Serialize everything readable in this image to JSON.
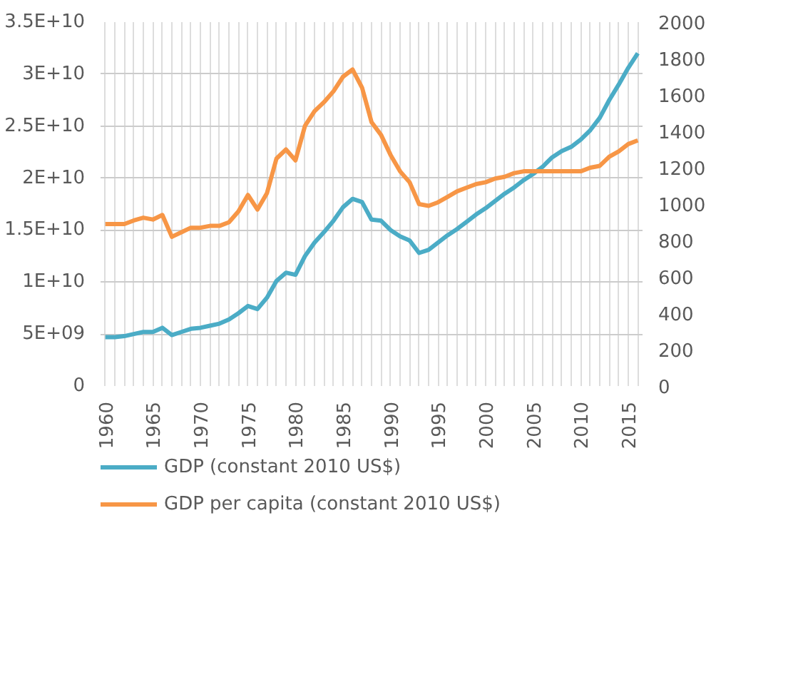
{
  "chart_data": {
    "type": "line",
    "x": [
      1960,
      1961,
      1962,
      1963,
      1964,
      1965,
      1966,
      1967,
      1968,
      1969,
      1970,
      1971,
      1972,
      1973,
      1974,
      1975,
      1976,
      1977,
      1978,
      1979,
      1980,
      1981,
      1982,
      1983,
      1984,
      1985,
      1986,
      1987,
      1988,
      1989,
      1990,
      1991,
      1992,
      1993,
      1994,
      1995,
      1996,
      1997,
      1998,
      1999,
      2000,
      2001,
      2002,
      2003,
      2004,
      2005,
      2006,
      2007,
      2008,
      2009,
      2010,
      2011,
      2012,
      2013,
      2014,
      2015,
      2016
    ],
    "series": [
      {
        "name": "GDP (constant 2010 US$)",
        "color": "#4bacc6",
        "values": [
          4700000000.0,
          4700000000.0,
          4800000000.0,
          5000000000.0,
          5200000000.0,
          5200000000.0,
          5600000000.0,
          4900000000.0,
          5200000000.0,
          5500000000.0,
          5600000000.0,
          5800000000.0,
          6000000000.0,
          6400000000.0,
          7000000000.0,
          7700000000.0,
          7400000000.0,
          8500000000.0,
          10100000000.0,
          10900000000.0,
          10700000000.0,
          12500000000.0,
          13800000000.0,
          14800000000.0,
          15900000000.0,
          17200000000.0,
          18000000000.0,
          17700000000.0,
          16000000000.0,
          15900000000.0,
          15000000000.0,
          14400000000.0,
          14000000000.0,
          12800000000.0,
          13100000000.0,
          13800000000.0,
          14500000000.0,
          15100000000.0,
          15800000000.0,
          16500000000.0,
          17100000000.0,
          17800000000.0,
          18500000000.0,
          19100000000.0,
          19800000000.0,
          20400000000.0,
          21100000000.0,
          22000000000.0,
          22600000000.0,
          23000000000.0,
          23700000000.0,
          24600000000.0,
          25800000000.0,
          27500000000.0,
          29000000000.0,
          30600000000.0,
          32000000000.0
        ]
      },
      {
        "name": "GDP per capita (constant 2010 US$)",
        "color": "#f79646",
        "axis": "y2",
        "values": [
          890,
          890,
          890,
          910,
          925,
          915,
          940,
          820,
          845,
          870,
          870,
          880,
          880,
          900,
          960,
          1050,
          970,
          1060,
          1250,
          1300,
          1240,
          1430,
          1510,
          1560,
          1620,
          1700,
          1740,
          1640,
          1450,
          1380,
          1270,
          1180,
          1120,
          1000,
          990,
          1010,
          1040,
          1070,
          1090,
          1110,
          1120,
          1140,
          1150,
          1170,
          1180,
          1180,
          1180,
          1180,
          1180,
          1180,
          1180,
          1200,
          1210,
          1260,
          1290,
          1330,
          1350
        ]
      }
    ],
    "xlim": [
      1959.5,
      2016.5
    ],
    "xticks": [
      1960,
      {
        "value": 1961,
        "label": null
      },
      {
        "value": 1962,
        "label": null
      },
      {
        "value": 1963,
        "label": null
      },
      {
        "value": 1964,
        "label": null
      },
      1965,
      {
        "value": 1966,
        "label": null
      },
      {
        "value": 1967,
        "label": null
      },
      {
        "value": 1968,
        "label": null
      },
      {
        "value": 1969,
        "label": null
      },
      1970,
      {
        "value": 1971,
        "label": null
      },
      {
        "value": 1972,
        "label": null
      },
      {
        "value": 1973,
        "label": null
      },
      {
        "value": 1974,
        "label": null
      },
      1975,
      {
        "value": 1976,
        "label": null
      },
      {
        "value": 1977,
        "label": null
      },
      {
        "value": 1978,
        "label": null
      },
      {
        "value": 1979,
        "label": null
      },
      1980,
      {
        "value": 1981,
        "label": null
      },
      {
        "value": 1982,
        "label": null
      },
      {
        "value": 1983,
        "label": null
      },
      {
        "value": 1984,
        "label": null
      },
      1985,
      {
        "value": 1986,
        "label": null
      },
      {
        "value": 1987,
        "label": null
      },
      {
        "value": 1988,
        "label": null
      },
      {
        "value": 1989,
        "label": null
      },
      1990,
      {
        "value": 1991,
        "label": null
      },
      {
        "value": 1992,
        "label": null
      },
      {
        "value": 1993,
        "label": null
      },
      {
        "value": 1994,
        "label": null
      },
      1995,
      {
        "value": 1996,
        "label": null
      },
      {
        "value": 1997,
        "label": null
      },
      {
        "value": 1998,
        "label": null
      },
      {
        "value": 1999,
        "label": null
      },
      2000,
      {
        "value": 2001,
        "label": null
      },
      {
        "value": 2002,
        "label": null
      },
      {
        "value": 2003,
        "label": null
      },
      {
        "value": 2004,
        "label": null
      },
      2005,
      {
        "value": 2006,
        "label": null
      },
      {
        "value": 2007,
        "label": null
      },
      {
        "value": 2008,
        "label": null
      },
      {
        "value": 2009,
        "label": null
      },
      2010,
      {
        "value": 2011,
        "label": null
      },
      {
        "value": 2012,
        "label": null
      },
      {
        "value": 2013,
        "label": null
      },
      {
        "value": 2014,
        "label": null
      },
      2015,
      {
        "value": 2016,
        "label": null
      }
    ],
    "ylim": [
      0,
      35000000000.0
    ],
    "yticks": [
      0,
      {
        "value": 5000000000.0,
        "label": "5E+09"
      },
      {
        "value": 10000000000.0,
        "label": "1E+10"
      },
      {
        "value": 15000000000.0,
        "label": "1.5E+10"
      },
      {
        "value": 20000000000.0,
        "label": "2E+10"
      },
      {
        "value": 25000000000.0,
        "label": "2.5E+10"
      },
      {
        "value": 30000000000.0,
        "label": "3E+10"
      },
      {
        "value": 35000000000.0,
        "label": "3.5E+10"
      }
    ],
    "y2lim": [
      0,
      2000
    ],
    "y2ticks": [
      0,
      200,
      400,
      600,
      800,
      1000,
      1200,
      1400,
      1600,
      1800,
      2000
    ],
    "grid": true,
    "legend": "bottom",
    "line_style": "solid",
    "marker": "none"
  }
}
